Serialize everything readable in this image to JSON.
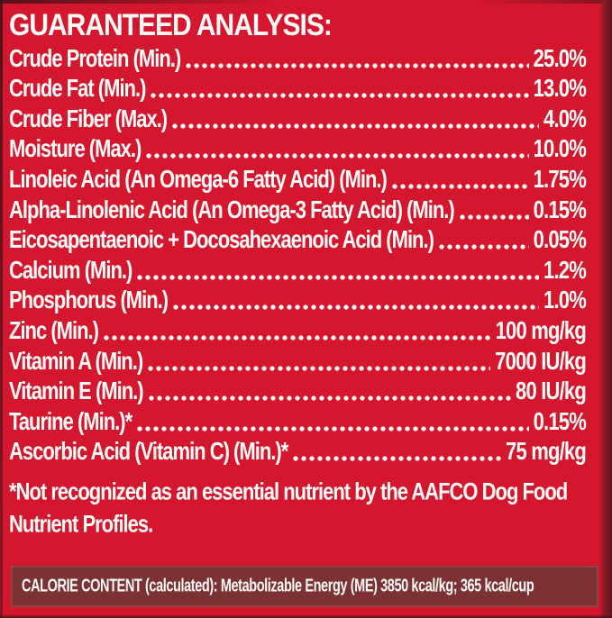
{
  "panel": {
    "heading": "GUARANTEED ANALYSIS:",
    "rows": [
      {
        "label": "Crude Protein (Min.)",
        "value": "25.0%"
      },
      {
        "label": "Crude Fat (Min.)",
        "value": "13.0%"
      },
      {
        "label": "Crude Fiber (Max.)",
        "value": "4.0%"
      },
      {
        "label": "Moisture (Max.)",
        "value": "10.0%"
      },
      {
        "label": "Linoleic Acid (An Omega-6 Fatty Acid) (Min.)",
        "value": "1.75%"
      },
      {
        "label": "Alpha-Linolenic Acid (An Omega-3 Fatty Acid) (Min.)",
        "value": "0.15%"
      },
      {
        "label": "Eicosapentaenoic + Docosahexaenoic Acid (Min.)",
        "value": "0.05%"
      },
      {
        "label": "Calcium (Min.)",
        "value": "1.2%"
      },
      {
        "label": "Phosphorus (Min.)",
        "value": "1.0%"
      },
      {
        "label": "Zinc (Min.)",
        "value": "100 mg/kg"
      },
      {
        "label": "Vitamin A (Min.)",
        "value": "7000 IU/kg"
      },
      {
        "label": "Vitamin E (Min.)",
        "value": "80 IU/kg"
      },
      {
        "label": "Taurine (Min.)*",
        "value": "0.15%"
      },
      {
        "label": "Ascorbic Acid (Vitamin C) (Min.)*",
        "value": "75 mg/kg"
      }
    ],
    "footnote": "*Not recognized as an essential nutrient by the AAFCO Dog Food Nutrient Profiles.",
    "calorie_content": "CALORIE CONTENT (calculated): Metabolizable Energy (ME) 3850 kcal/kg; 365 kcal/cup"
  },
  "colors": {
    "background_red": "#D4162E",
    "calorie_box_fill": "#7C3134",
    "calorie_box_border": "#8E4345",
    "text": "#FDFBF8",
    "edge_shadow": "#5E151B"
  }
}
